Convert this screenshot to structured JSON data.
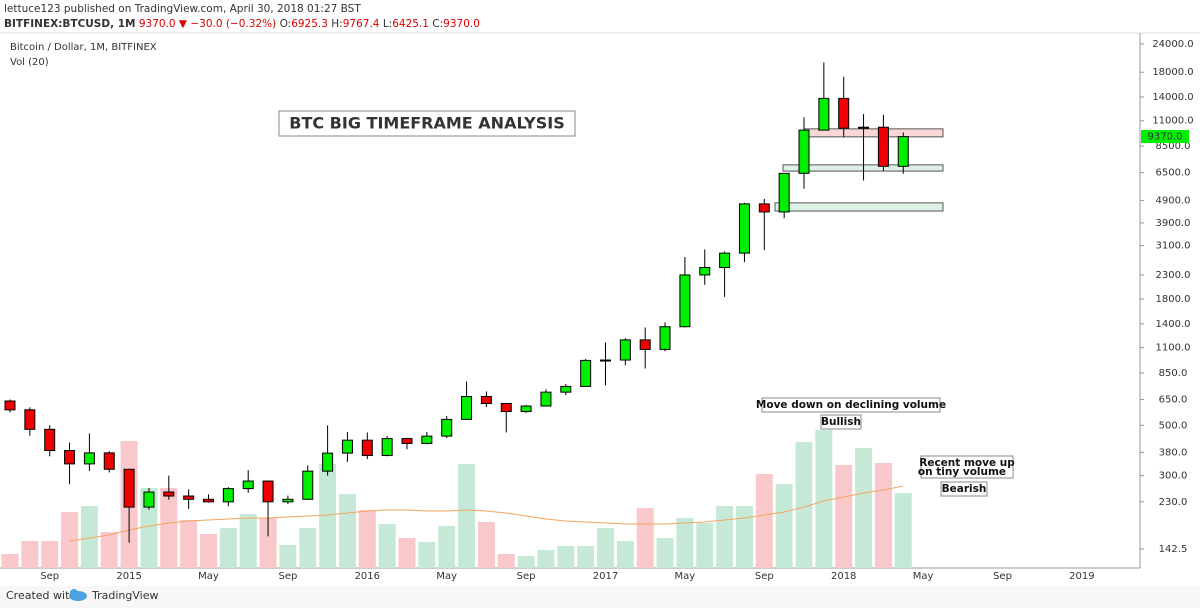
{
  "header": {
    "publisher": "lettuce123 published on TradingView.com, April 30, 2018 01:27 BST",
    "symbol": "BITFINEX:BTCUSD, 1M",
    "last": "9370.0",
    "arrow": "▼",
    "change": "−30.0 (−0.32%)",
    "ohlc": [
      {
        "label": "O:",
        "value": "6925.3"
      },
      {
        "label": "H:",
        "value": "9767.4"
      },
      {
        "label": "L:",
        "value": "6425.1"
      },
      {
        "label": "C:",
        "value": "9370.0"
      }
    ]
  },
  "footer": {
    "created_with": "Created with",
    "brand": "TradingView"
  },
  "chart_data": {
    "type": "candlestick",
    "legend_title": "Bitcoin / Dollar, 1M, BITFINEX",
    "volume_label": "Vol (20)",
    "categories": [
      null,
      null,
      "Sep",
      null,
      null,
      null,
      "2015",
      null,
      null,
      null,
      "May",
      null,
      null,
      null,
      "Sep",
      null,
      null,
      null,
      "2016",
      null,
      null,
      null,
      "May",
      null,
      null,
      null,
      "Sep",
      null,
      null,
      null,
      "2017",
      null,
      null,
      null,
      "May",
      null,
      null,
      null,
      "Sep",
      null,
      null,
      null,
      "2018",
      null,
      null,
      null,
      "May",
      null,
      null,
      null,
      "Sep",
      null,
      null,
      null,
      "2019",
      null,
      null
    ],
    "open": [
      640,
      585,
      480,
      387,
      338,
      378,
      320,
      218,
      254,
      244,
      236,
      230,
      263,
      284,
      230,
      236,
      314,
      377,
      430,
      368,
      437,
      416,
      448,
      531,
      670,
      624,
      575,
      608,
      700,
      742,
      966,
      970,
      1190,
      1080,
      1360,
      2300,
      2480,
      2870,
      4730,
      4360,
      6450,
      10000,
      13800,
      10200,
      10300,
      6925.3,
      null,
      null,
      null,
      null,
      null,
      null,
      null,
      null,
      null,
      null,
      null
    ],
    "high": [
      650,
      600,
      500,
      420,
      460,
      385,
      320,
      265,
      300,
      261,
      248,
      267,
      317,
      285,
      245,
      333,
      500,
      467,
      465,
      448,
      440,
      467,
      550,
      780,
      705,
      625,
      615,
      720,
      760,
      980,
      1160,
      1210,
      1350,
      1420,
      2760,
      2980,
      2920,
      4780,
      4980,
      6450,
      11400,
      19890,
      17200,
      11780,
      11700,
      9767.4,
      null,
      null,
      null,
      null,
      null,
      null,
      null,
      null,
      null,
      null,
      null
    ],
    "low": [
      570,
      450,
      365,
      275,
      315,
      310,
      152,
      212,
      235,
      214,
      228,
      220,
      252,
      162,
      225,
      236,
      300,
      345,
      355,
      365,
      392,
      412,
      440,
      530,
      602,
      465,
      566,
      605,
      680,
      740,
      750,
      920,
      890,
      1060,
      1350,
      2080,
      1840,
      2620,
      2960,
      4090,
      5520,
      10000,
      9300,
      6000,
      6600,
      6425.1,
      null,
      null,
      null,
      null,
      null,
      null,
      null,
      null,
      null,
      null,
      null
    ],
    "close": [
      585,
      480,
      387,
      338,
      378,
      320,
      218,
      254,
      244,
      236,
      230,
      263,
      284,
      230,
      236,
      314,
      377,
      430,
      368,
      437,
      416,
      448,
      531,
      670,
      624,
      575,
      608,
      700,
      742,
      966,
      970,
      1190,
      1080,
      1360,
      2300,
      2480,
      2870,
      4730,
      4360,
      6450,
      10000,
      13800,
      10200,
      10300,
      6925.3,
      9370,
      null,
      null,
      null,
      null,
      null,
      null,
      null,
      null,
      null,
      null,
      null
    ],
    "volume": [
      14,
      27,
      27,
      56,
      62,
      36,
      127,
      80,
      80,
      48,
      34,
      40,
      54,
      50,
      23,
      40,
      104,
      74,
      58,
      44,
      30,
      26,
      42,
      104,
      46,
      14,
      12,
      18,
      22,
      22,
      40,
      27,
      60,
      30,
      50,
      45,
      62,
      62,
      94,
      84,
      126,
      138,
      103,
      120,
      105,
      75,
      null,
      null,
      null,
      null,
      null,
      null,
      null,
      null,
      null,
      null,
      null
    ],
    "volume_ma": [
      null,
      null,
      null,
      27,
      30,
      33,
      38,
      42,
      45,
      47,
      48,
      49,
      50,
      50,
      51,
      52,
      53,
      55,
      57,
      58,
      58,
      57,
      57,
      58,
      57,
      55,
      52,
      49,
      47,
      46,
      45,
      44,
      44,
      44,
      45,
      46,
      48,
      50,
      53,
      56,
      61,
      67,
      71,
      75,
      78,
      82,
      null,
      null,
      null,
      null,
      null,
      null,
      null,
      null,
      null,
      null,
      null
    ],
    "up_color": "#00ee00",
    "down_color": "#ee0000",
    "up_volume_color": "#c6e9d7",
    "down_volume_color": "#f8c8ca",
    "ma_color": "#f4a460",
    "log_scale": true,
    "ylim": [
      117.5,
      26800
    ],
    "yticks": [
      {
        "value": 24000,
        "label": "24000.0"
      },
      {
        "value": 18000,
        "label": "18000.0"
      },
      {
        "value": 14000,
        "label": "14000.0"
      },
      {
        "value": 11000,
        "label": "11000.0"
      },
      {
        "value": 8500,
        "label": "8500.0"
      },
      {
        "value": 6500,
        "label": "6500.0"
      },
      {
        "value": 4900,
        "label": "4900.0"
      },
      {
        "value": 3900,
        "label": "3900.0"
      },
      {
        "value": 3100,
        "label": "3100.0"
      },
      {
        "value": 2300,
        "label": "2300.0"
      },
      {
        "value": 1800,
        "label": "1800.0"
      },
      {
        "value": 1400,
        "label": "1400.0"
      },
      {
        "value": 1100,
        "label": "1100.0"
      },
      {
        "value": 850,
        "label": "850.0"
      },
      {
        "value": 650,
        "label": "650.0"
      },
      {
        "value": 500,
        "label": "500.0"
      },
      {
        "value": 380,
        "label": "380.0"
      },
      {
        "value": 300,
        "label": "300.0"
      },
      {
        "value": 230,
        "label": "230.0"
      },
      142.5
    ],
    "last_price": {
      "value": 9370,
      "label": "9370.0"
    },
    "zones": [
      {
        "low": 9340,
        "high": 10130,
        "color": "#f9d0d0"
      },
      {
        "low": 6600,
        "high": 7030,
        "color": "#d8eee0"
      },
      {
        "low": 4400,
        "high": 4780,
        "color": "#d8eee0"
      }
    ],
    "annotations": {
      "title": "BTC BIG TIMEFRAME ANALYSIS",
      "move_down": "Move down on declining volume",
      "bullish": "Bullish",
      "recent_1": "Recent move up",
      "recent_2": "on tiny volume",
      "bearish": "Bearish"
    }
  }
}
